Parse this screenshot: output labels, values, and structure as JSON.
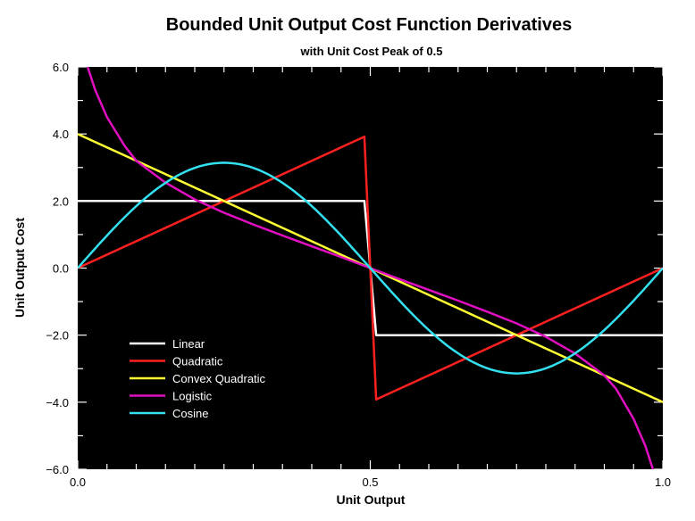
{
  "chart_data": {
    "type": "line",
    "title": "Bounded Unit Output Cost Function Derivatives",
    "subtitle": "with Unit Cost Peak of 0.5",
    "xlabel": "Unit Output",
    "ylabel": "Unit Output Cost",
    "xlim": [
      0.0,
      1.0
    ],
    "ylim": [
      -6.0,
      6.0
    ],
    "x_ticks": [
      "0.0",
      "0.5",
      "1.0"
    ],
    "y_ticks": [
      "6.0",
      "4.0",
      "2.0",
      "0.0",
      "−2.0",
      "−4.0",
      "−6.0"
    ],
    "plot_background": "#000000",
    "grid": false,
    "legend_position": "lower-left",
    "series": [
      {
        "name": "Linear",
        "color": "#ffffff",
        "x": [
          0.0,
          0.49,
          0.51,
          1.0
        ],
        "y": [
          2.0,
          2.0,
          -2.0,
          -2.0
        ]
      },
      {
        "name": "Quadratic",
        "color": "#ff2020",
        "x": [
          0.0,
          0.49,
          0.51,
          1.0
        ],
        "y": [
          0.0,
          3.92,
          -3.92,
          0.0
        ]
      },
      {
        "name": "Convex Quadratic",
        "color": "#ffff33",
        "x": [
          0.0,
          1.0
        ],
        "y": [
          4.0,
          -4.0
        ]
      },
      {
        "name": "Logistic",
        "color": "#e010c0",
        "x": [
          0.017,
          0.03,
          0.05,
          0.08,
          0.1,
          0.15,
          0.2,
          0.25,
          0.3,
          0.35,
          0.4,
          0.45,
          0.5,
          0.55,
          0.6,
          0.65,
          0.7,
          0.75,
          0.8,
          0.85,
          0.9,
          0.92,
          0.95,
          0.97,
          0.983
        ],
        "y": [
          6.0,
          5.3,
          4.5,
          3.65,
          3.2,
          2.55,
          2.05,
          1.65,
          1.3,
          0.97,
          0.65,
          0.33,
          0.0,
          -0.33,
          -0.65,
          -0.97,
          -1.3,
          -1.65,
          -2.05,
          -2.55,
          -3.2,
          -3.6,
          -4.5,
          -5.3,
          -6.0
        ]
      },
      {
        "name": "Cosine",
        "color": "#33e0f0",
        "function": "pi*sin(2*pi*x)",
        "x_range": [
          0.0,
          1.0
        ]
      }
    ]
  }
}
